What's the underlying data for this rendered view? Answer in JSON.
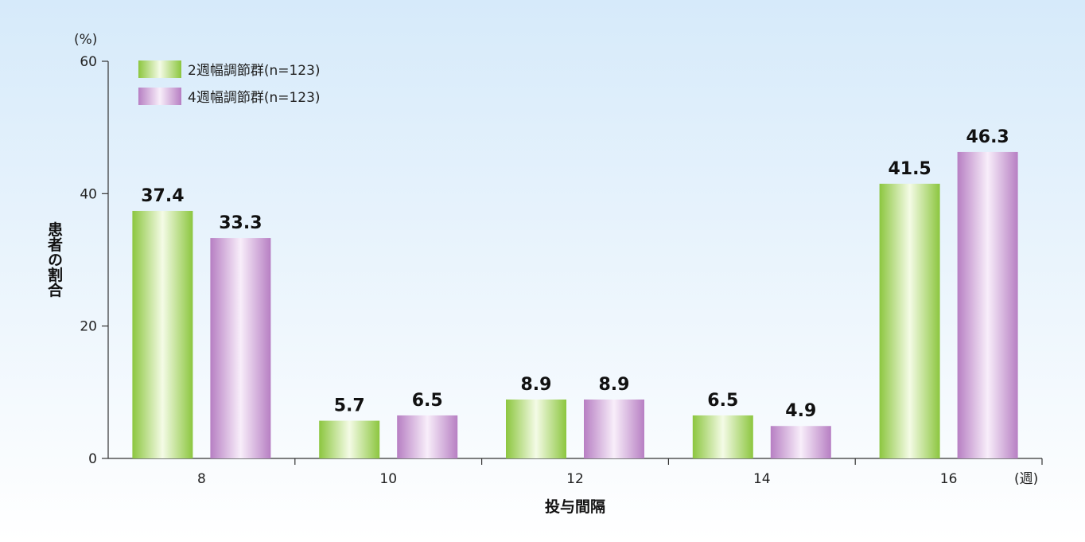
{
  "chart_data": {
    "type": "bar",
    "categories": [
      "8",
      "10",
      "12",
      "14",
      "16"
    ],
    "series": [
      {
        "name": "2週幅調節群(n=123)",
        "values": [
          37.4,
          5.7,
          8.9,
          6.5,
          41.5
        ],
        "value_labels": [
          "37.4",
          "5.7",
          "8.9",
          "6.5",
          "41.5"
        ]
      },
      {
        "name": "4週幅調節群(n=123)",
        "values": [
          33.3,
          6.5,
          8.9,
          4.9,
          46.3
        ],
        "value_labels": [
          "33.3",
          "6.5",
          "8.9",
          "4.9",
          "46.3"
        ]
      }
    ],
    "xlabel": "投与間隔",
    "x_unit": "(週)",
    "ylabel": "患者の割合",
    "y_unit": "(%)",
    "ylim": [
      0,
      60
    ],
    "yticks": [
      "0",
      "20",
      "40",
      "60"
    ],
    "grid": false,
    "legend_position": "top-left",
    "colors": {
      "series_1_edge": "#8cc63f",
      "series_1_center": "#f4fbe6",
      "series_2_edge": "#b77fc3",
      "series_2_center": "#f8eefa",
      "background_top": "#d6eafa",
      "background_bottom": "#ffffff"
    }
  }
}
